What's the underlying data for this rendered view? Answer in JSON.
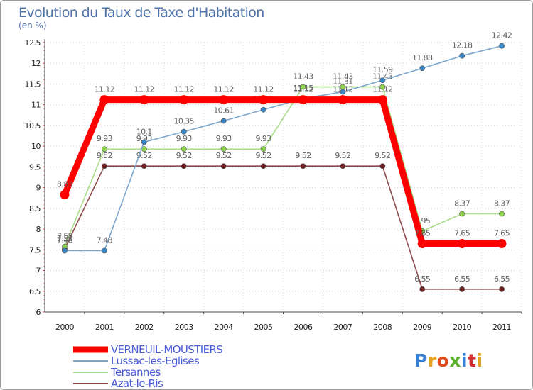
{
  "chart_data": {
    "type": "line",
    "title": "Evolution du Taux de Taxe d'Habitation",
    "subtitle": "(en %)",
    "xlabel": "",
    "ylabel": "",
    "x": [
      "2000",
      "2001",
      "2002",
      "2003",
      "2004",
      "2005",
      "2006",
      "2007",
      "2008",
      "2009",
      "2010",
      "2011"
    ],
    "ylim": [
      6,
      12.5
    ],
    "yticks": [
      "6",
      "6.5",
      "7",
      "7.5",
      "8",
      "8.5",
      "9",
      "9.5",
      "10",
      "10.5",
      "11",
      "11.5",
      "12",
      "12.5"
    ],
    "grid": "horizontal dotted",
    "legend_position": "bottom-left",
    "series": [
      {
        "name": "VERNEUIL-MOUSTIERS",
        "color": "#ff0000",
        "marker": "#ff0000",
        "values": [
          8.83,
          11.12,
          11.12,
          11.12,
          11.12,
          11.12,
          11.12,
          11.12,
          11.12,
          7.65,
          7.65,
          7.65
        ],
        "labels": [
          "8.83",
          "11.12",
          "11.12",
          "11.12",
          "11.12",
          "11.12",
          "11.12",
          "11.12",
          "11.12",
          "7.65",
          "7.65",
          "7.65"
        ]
      },
      {
        "name": "Lussac-les-Eglises",
        "color": "#7ea6cc",
        "marker": "#3a87c8",
        "values": [
          7.48,
          7.48,
          10.1,
          10.35,
          10.61,
          10.88,
          11.15,
          11.31,
          11.59,
          11.88,
          12.18,
          12.42
        ],
        "labels": [
          "7.48",
          "7.48",
          "10.1",
          "10.35",
          "10.61",
          "10.88",
          "11.15",
          "11.31",
          "11.59",
          "11.88",
          "12.18",
          "12.42"
        ]
      },
      {
        "name": "Tersannes",
        "color": "#a8dc88",
        "marker": "#8cd24a",
        "values": [
          7.58,
          9.93,
          9.93,
          9.93,
          9.93,
          9.93,
          11.43,
          11.43,
          11.43,
          7.95,
          8.37,
          8.37
        ],
        "labels": [
          "7.58",
          "9.93",
          "9.93",
          "9.93",
          "9.93",
          "9.93",
          "11.43",
          "11.43",
          "11.43",
          "7.95",
          "8.37",
          "8.37"
        ]
      },
      {
        "name": "Azat-le-Ris",
        "color": "#8c4a4a",
        "marker": "#6e1f1f",
        "values": [
          7.52,
          9.52,
          9.52,
          9.52,
          9.52,
          9.52,
          9.52,
          9.52,
          9.52,
          6.55,
          6.55,
          6.55
        ],
        "labels": [
          "7.52",
          "9.52",
          "9.52",
          "9.52",
          "9.52",
          "9.52",
          "9.52",
          "9.52",
          "9.52",
          "6.55",
          "6.55",
          "6.55"
        ]
      }
    ]
  },
  "logo": {
    "text": "Proxiti"
  }
}
